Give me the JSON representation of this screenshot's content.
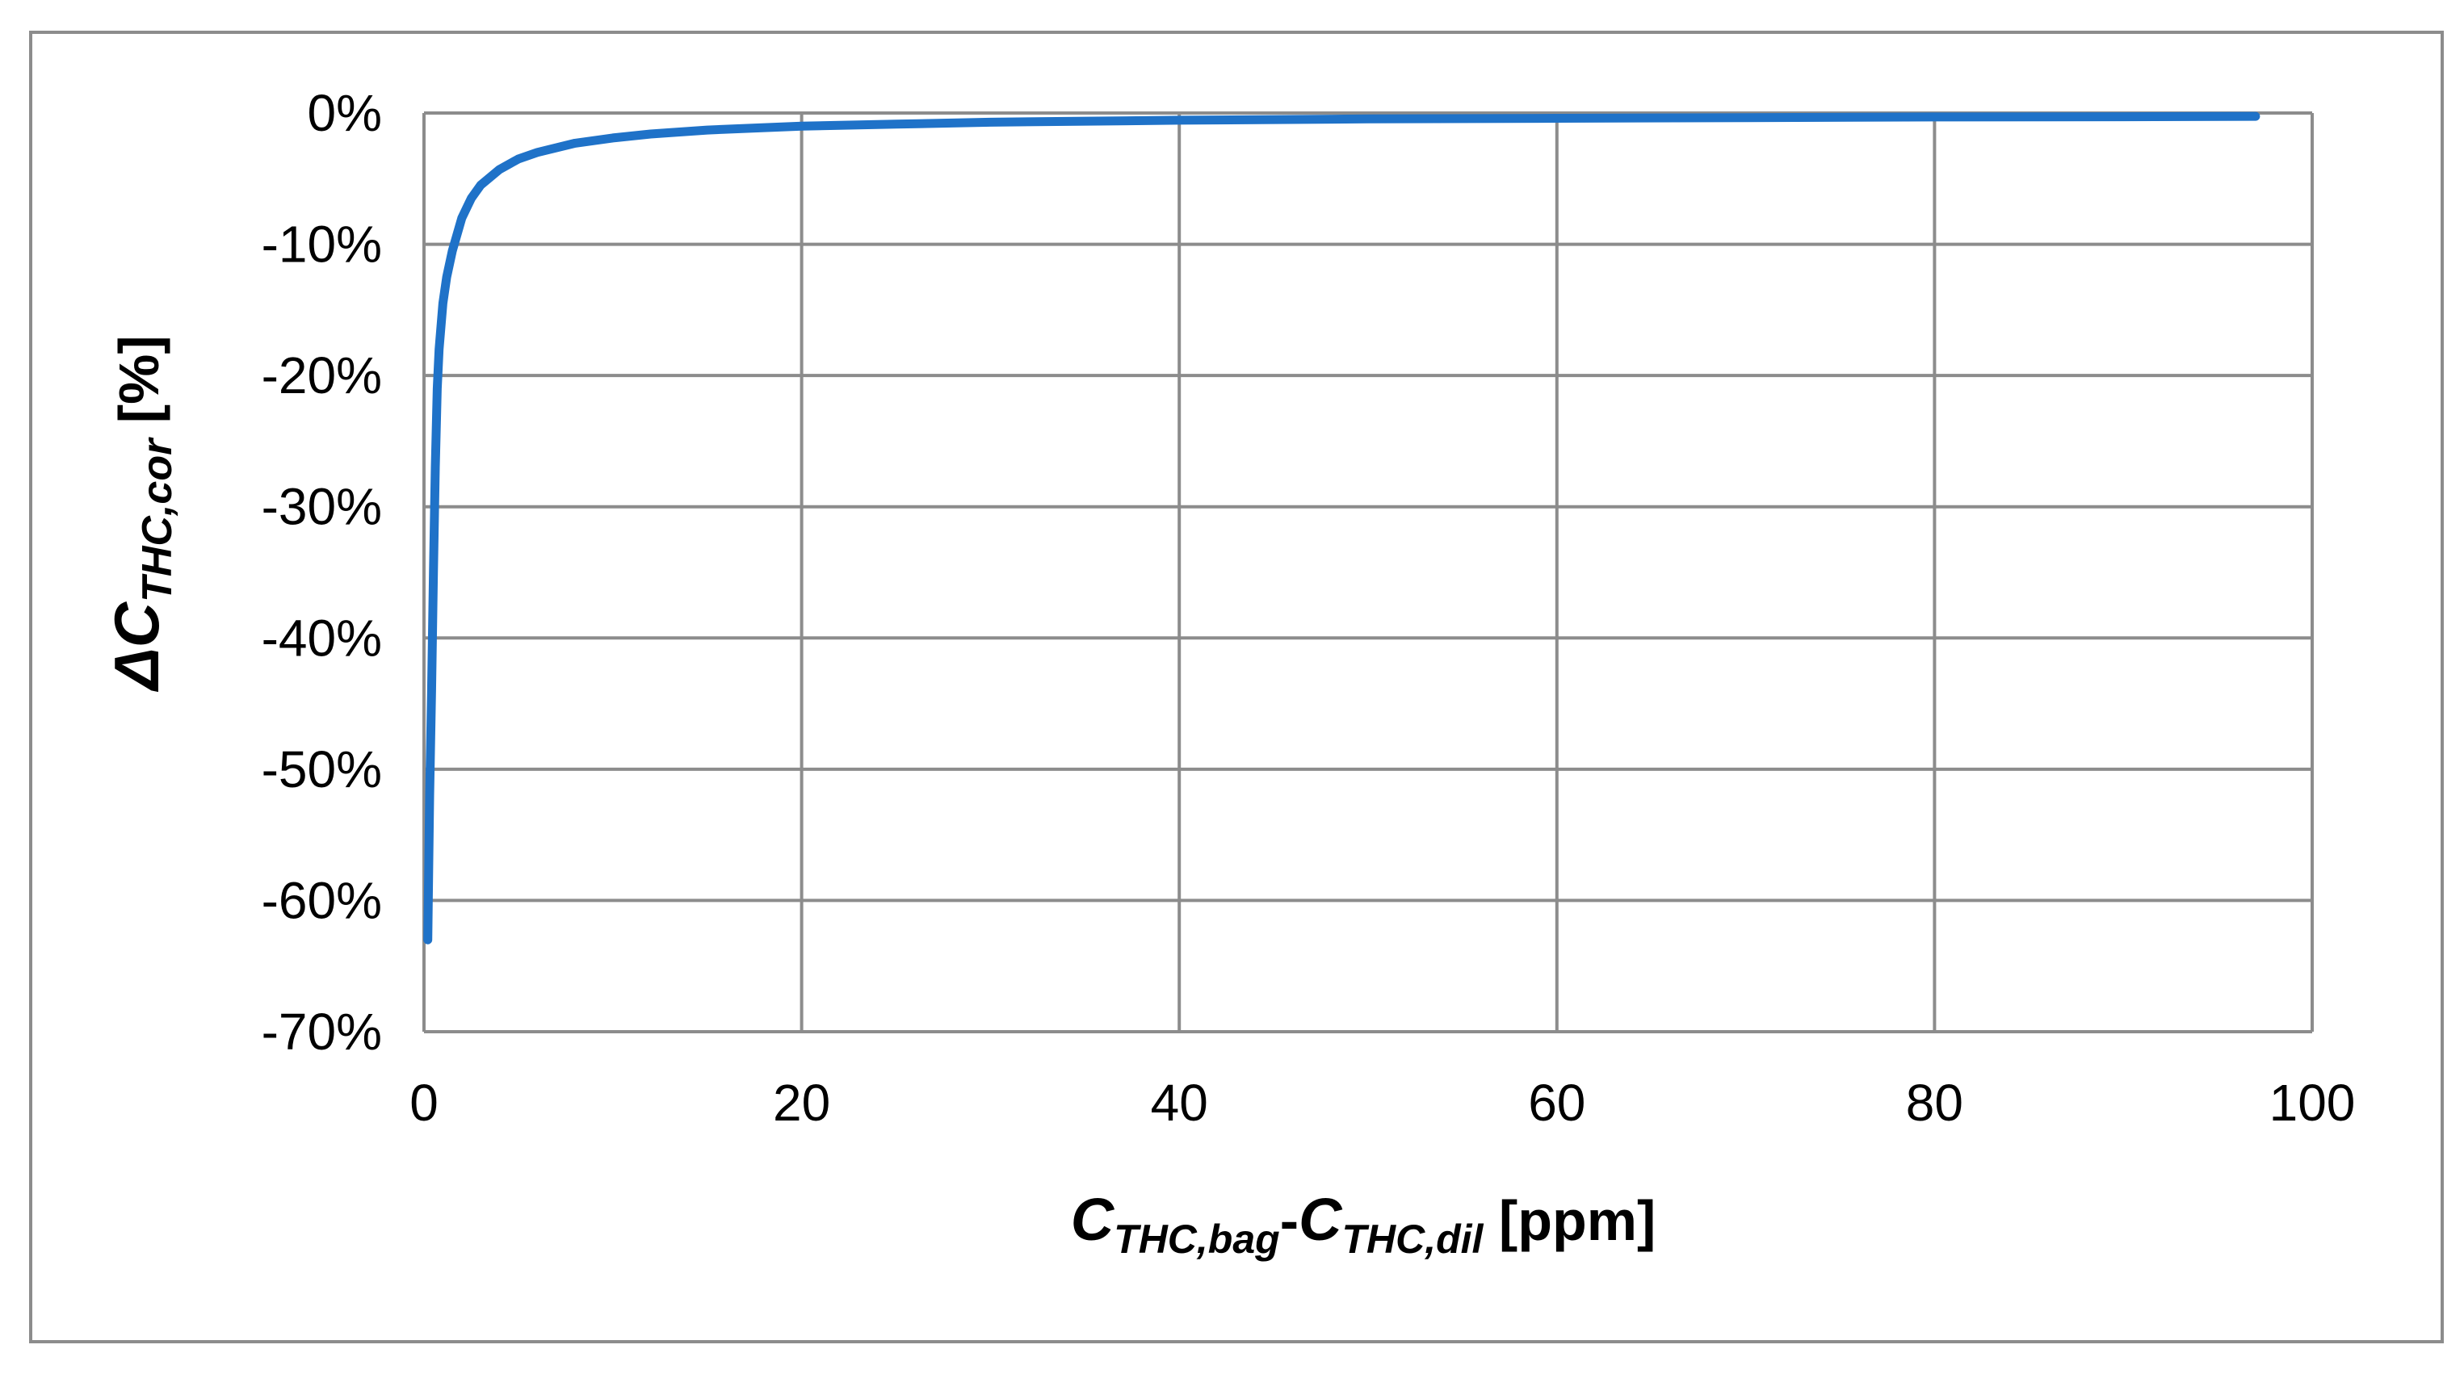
{
  "chart_data": {
    "type": "line",
    "title": "",
    "xlim": [
      0,
      100
    ],
    "ylim": [
      -70,
      0
    ],
    "x_ticks": [
      0,
      20,
      40,
      60,
      80,
      100
    ],
    "y_ticks": [
      0,
      -10,
      -20,
      -30,
      -40,
      -50,
      -60,
      -70
    ],
    "x_tick_labels": [
      "0",
      "20",
      "40",
      "60",
      "80",
      "100"
    ],
    "y_tick_labels": [
      "0%",
      "-10%",
      "-20%",
      "-30%",
      "-40%",
      "-50%",
      "-60%",
      "-70%"
    ],
    "xlabel": {
      "base1": "C",
      "sub1": "THC,bag",
      "dash": "-",
      "base2": "C",
      "sub2": "THC,dil",
      "unit": " [ppm]"
    },
    "ylabel": {
      "delta": "Δ",
      "base": "C",
      "sub": "THC,cor",
      "unit": " [%]"
    },
    "grid": true,
    "legend": "none",
    "series": [
      {
        "color": "#1f72c8",
        "x": [
          0.2,
          0.3,
          0.4,
          0.5,
          0.6,
          0.7,
          0.8,
          1.0,
          1.2,
          1.5,
          2,
          2.5,
          3,
          4,
          5,
          6,
          8,
          10,
          12,
          15,
          20,
          25,
          30,
          40,
          50,
          60,
          70,
          80,
          90,
          97
        ],
        "y": [
          -63,
          -52,
          -44,
          -35,
          -27,
          -21,
          -18,
          -14.5,
          -12.5,
          -10.5,
          -8,
          -6.5,
          -5.5,
          -4.3,
          -3.5,
          -3.0,
          -2.3,
          -1.9,
          -1.6,
          -1.3,
          -1.0,
          -0.85,
          -0.7,
          -0.55,
          -0.45,
          -0.4,
          -0.35,
          -0.3,
          -0.28,
          -0.25
        ]
      }
    ]
  }
}
